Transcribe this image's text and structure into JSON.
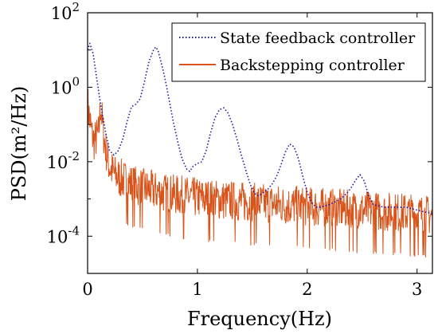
{
  "chart_data": {
    "type": "line",
    "title": "",
    "xlabel": "Frequency(Hz)",
    "ylabel": "PSD(m²/Hz)",
    "xlim": [
      0,
      3.14
    ],
    "ylim": [
      1e-05,
      100
    ],
    "yscale": "log",
    "grid": false,
    "legend_position": "top-right",
    "x_ticks": [
      0,
      1,
      2,
      3
    ],
    "x_tick_labels": [
      "0",
      "1",
      "2",
      "3"
    ],
    "y_ticks": [
      100,
      1,
      0.01,
      0.0001
    ],
    "y_tick_labels": [
      {
        "base": "10",
        "exp": "2"
      },
      {
        "base": "10",
        "exp": "0"
      },
      {
        "base": "10",
        "exp": "-2"
      },
      {
        "base": "10",
        "exp": "-4"
      }
    ],
    "series": [
      {
        "name": "State feedback controller",
        "color": "#1a1aa8",
        "line_style": "dotted",
        "x": [
          0.0,
          0.02,
          0.05,
          0.08,
          0.11,
          0.14,
          0.17,
          0.2,
          0.24,
          0.28,
          0.32,
          0.36,
          0.4,
          0.44,
          0.48,
          0.52,
          0.56,
          0.6,
          0.62,
          0.64,
          0.66,
          0.7,
          0.74,
          0.78,
          0.82,
          0.86,
          0.9,
          0.93,
          0.96,
          1.0,
          1.04,
          1.08,
          1.12,
          1.16,
          1.2,
          1.24,
          1.28,
          1.32,
          1.36,
          1.4,
          1.44,
          1.48,
          1.52,
          1.56,
          1.6,
          1.64,
          1.68,
          1.72,
          1.76,
          1.8,
          1.84,
          1.88,
          1.92,
          1.96,
          2.0,
          2.04,
          2.08,
          2.12,
          2.16,
          2.2,
          2.24,
          2.28,
          2.32,
          2.36,
          2.4,
          2.44,
          2.48,
          2.52,
          2.56,
          2.6,
          2.7,
          2.8,
          2.9,
          3.0,
          3.14
        ],
        "y": [
          10,
          15,
          8,
          2,
          0.5,
          0.15,
          0.05,
          0.02,
          0.015,
          0.02,
          0.04,
          0.12,
          0.3,
          0.35,
          0.5,
          1.5,
          5,
          10,
          12,
          10,
          6,
          2,
          0.5,
          0.12,
          0.035,
          0.012,
          0.0065,
          0.0055,
          0.0075,
          0.009,
          0.01,
          0.02,
          0.06,
          0.15,
          0.25,
          0.28,
          0.2,
          0.1,
          0.04,
          0.015,
          0.006,
          0.0025,
          0.0014,
          0.0012,
          0.0015,
          0.0018,
          0.0025,
          0.004,
          0.008,
          0.018,
          0.03,
          0.025,
          0.012,
          0.004,
          0.0015,
          0.0008,
          0.0006,
          0.0006,
          0.00065,
          0.0007,
          0.0008,
          0.0009,
          0.0011,
          0.0014,
          0.002,
          0.0032,
          0.0045,
          0.003,
          0.0012,
          0.0007,
          0.0006,
          0.0006,
          0.0006,
          0.0005,
          0.0004
        ]
      },
      {
        "name": "Backstepping controller",
        "color": "#d9541a",
        "line_style": "solid",
        "x": [
          0.0,
          0.02,
          0.04,
          0.06,
          0.08,
          0.1,
          0.12,
          0.14,
          0.16,
          0.18,
          0.2,
          0.25,
          0.3,
          0.4,
          0.5,
          0.7,
          1.0,
          1.5,
          2.0,
          2.5,
          3.0,
          3.14
        ],
        "y": [
          0.4,
          0.15,
          0.06,
          0.04,
          0.05,
          0.06,
          0.4,
          0.08,
          0.03,
          0.015,
          0.008,
          0.005,
          0.004,
          0.0028,
          0.0022,
          0.0016,
          0.0012,
          0.0009,
          0.0007,
          0.00055,
          0.00045,
          0.0004
        ]
      }
    ]
  }
}
